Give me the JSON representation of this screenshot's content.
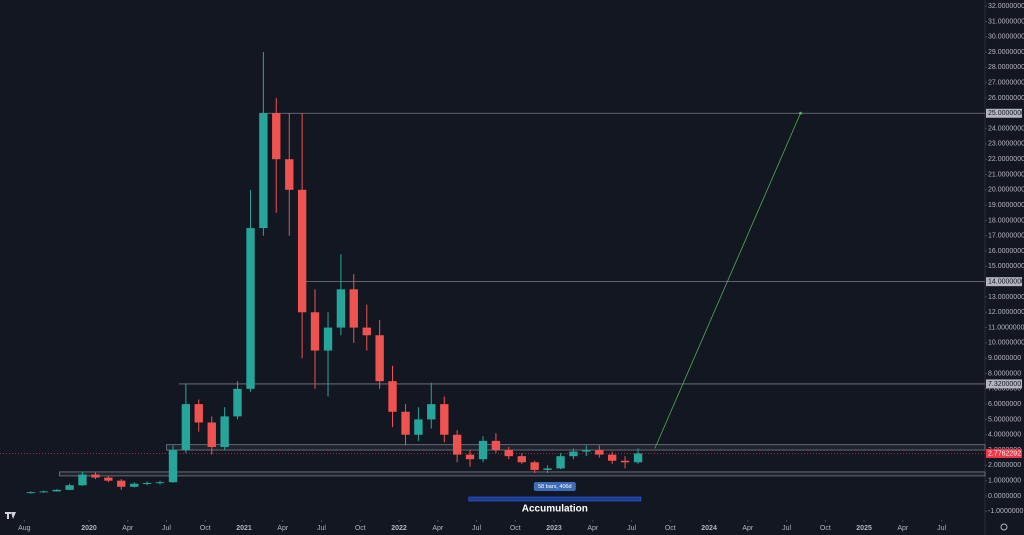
{
  "chart_data": {
    "type": "candlestick",
    "up_color": "#26a69a",
    "down_color": "#ef5350",
    "x": [
      2019.625,
      2019.708,
      2019.792,
      2019.875,
      2019.958,
      2020.042,
      2020.125,
      2020.208,
      2020.292,
      2020.375,
      2020.458,
      2020.542,
      2020.625,
      2020.708,
      2020.792,
      2020.875,
      2020.958,
      2021.042,
      2021.125,
      2021.208,
      2021.292,
      2021.375,
      2021.458,
      2021.542,
      2021.625,
      2021.708,
      2021.792,
      2021.875,
      2021.958,
      2022.042,
      2022.125,
      2022.208,
      2022.292,
      2022.375,
      2022.458,
      2022.542,
      2022.625,
      2022.708,
      2022.792,
      2022.875,
      2022.958,
      2023.042,
      2023.125,
      2023.208,
      2023.292,
      2023.375,
      2023.458,
      2023.542
    ],
    "open": [
      0.2,
      0.25,
      0.3,
      0.4,
      0.7,
      1.4,
      1.2,
      1.0,
      0.6,
      0.8,
      0.85,
      0.9,
      3.0,
      6.0,
      4.8,
      3.2,
      5.2,
      7.0,
      17.5,
      25.0,
      22.0,
      20.0,
      12.0,
      9.5,
      11.0,
      13.5,
      11.0,
      10.5,
      7.5,
      5.5,
      4.0,
      5.0,
      6.0,
      4.0,
      2.7,
      2.4,
      3.6,
      3.0,
      2.6,
      2.2,
      1.7,
      1.8,
      2.6,
      2.9,
      3.0,
      2.7,
      2.3,
      2.2
    ],
    "high": [
      0.3,
      0.35,
      0.45,
      0.8,
      1.6,
      1.55,
      1.3,
      1.1,
      0.9,
      0.95,
      1.0,
      3.3,
      7.3,
      6.3,
      5.2,
      5.8,
      7.5,
      20.0,
      29.0,
      26.0,
      25.0,
      25.0,
      13.5,
      12.0,
      15.8,
      14.5,
      12.5,
      11.5,
      8.5,
      6.0,
      5.8,
      7.4,
      6.5,
      4.3,
      3.0,
      3.9,
      4.1,
      3.2,
      2.8,
      2.3,
      2.0,
      2.8,
      3.1,
      3.3,
      3.3,
      2.9,
      2.6,
      3.1
    ],
    "low": [
      0.15,
      0.2,
      0.28,
      0.38,
      0.65,
      1.1,
      0.9,
      0.4,
      0.55,
      0.7,
      0.75,
      0.85,
      2.8,
      4.2,
      2.7,
      3.0,
      5.0,
      6.8,
      17.0,
      18.5,
      17.0,
      9.0,
      7.0,
      6.5,
      10.5,
      10.0,
      9.5,
      7.0,
      4.5,
      3.3,
      3.6,
      4.4,
      3.5,
      2.2,
      1.9,
      2.2,
      2.8,
      2.4,
      2.1,
      1.5,
      1.5,
      1.75,
      2.4,
      2.6,
      2.5,
      2.1,
      1.8,
      2.1
    ],
    "close": [
      0.25,
      0.3,
      0.4,
      0.7,
      1.4,
      1.2,
      1.0,
      0.6,
      0.8,
      0.85,
      0.9,
      3.0,
      6.0,
      4.8,
      3.2,
      5.2,
      7.0,
      17.5,
      25.0,
      22.0,
      20.0,
      12.0,
      9.5,
      11.0,
      13.5,
      11.0,
      10.5,
      7.5,
      5.5,
      4.0,
      5.0,
      6.0,
      4.0,
      2.7,
      2.4,
      3.6,
      3.0,
      2.6,
      2.2,
      1.7,
      1.8,
      2.6,
      2.9,
      3.0,
      2.7,
      2.3,
      2.2,
      2.7762292
    ],
    "xlim": [
      2019.426,
      2025.78
    ],
    "ylim": [
      -1.57,
      32.4
    ],
    "xticks": [
      {
        "value": 2019.583,
        "label": "Aug"
      },
      2020,
      {
        "value": 2020.25,
        "label": "Apr"
      },
      {
        "value": 2020.5,
        "label": "Jul"
      },
      {
        "value": 2020.75,
        "label": "Oct"
      },
      2021,
      {
        "value": 2021.25,
        "label": "Apr"
      },
      {
        "value": 2021.5,
        "label": "Jul"
      },
      {
        "value": 2021.75,
        "label": "Oct"
      },
      2022,
      {
        "value": 2022.25,
        "label": "Apr"
      },
      {
        "value": 2022.5,
        "label": "Jul"
      },
      {
        "value": 2022.75,
        "label": "Oct"
      },
      2023,
      {
        "value": 2023.25,
        "label": "Apr"
      },
      {
        "value": 2023.5,
        "label": "Jul"
      },
      {
        "value": 2023.75,
        "label": "Oct"
      },
      2024,
      {
        "value": 2024.25,
        "label": "Apr"
      },
      {
        "value": 2024.5,
        "label": "Jul"
      },
      {
        "value": 2024.75,
        "label": "Oct"
      },
      2025,
      {
        "value": 2025.25,
        "label": "Apr"
      },
      {
        "value": 2025.5,
        "label": "Jul"
      }
    ],
    "yticks": [
      {
        "value": -1,
        "label": "-1.0000000"
      },
      {
        "value": 0,
        "label": "0.0000000"
      },
      {
        "value": 1,
        "label": "1.0000000"
      },
      {
        "value": 2,
        "label": "2.0000000"
      },
      {
        "value": 3,
        "label": "3.0000000"
      },
      {
        "value": 4,
        "label": "4.0000000"
      },
      {
        "value": 5,
        "label": "5.0000000"
      },
      {
        "value": 6,
        "label": "6.0000000"
      },
      {
        "value": 7,
        "label": "7.0000000"
      },
      {
        "value": 8,
        "label": "8.0000000"
      },
      {
        "value": 9,
        "label": "9.0000000"
      },
      {
        "value": 10,
        "label": "10.0000000"
      },
      {
        "value": 11,
        "label": "11.0000000"
      },
      {
        "value": 12,
        "label": "12.0000000"
      },
      {
        "value": 13,
        "label": "13.0000000"
      },
      {
        "value": 15,
        "label": "15.0000000"
      },
      {
        "value": 16,
        "label": "16.0000000"
      },
      {
        "value": 17,
        "label": "17.0000000"
      },
      {
        "value": 18,
        "label": "18.0000000"
      },
      {
        "value": 19,
        "label": "19.0000000"
      },
      {
        "value": 20,
        "label": "20.0000000"
      },
      {
        "value": 21,
        "label": "21.0000000"
      },
      {
        "value": 22,
        "label": "22.0000000"
      },
      {
        "value": 23,
        "label": "23.0000000"
      },
      {
        "value": 24,
        "label": "24.0000000"
      },
      {
        "value": 26,
        "label": "26.0000000"
      },
      {
        "value": 27,
        "label": "27.0000000"
      },
      {
        "value": 28,
        "label": "28.0000000"
      },
      {
        "value": 29,
        "label": "29.0000000"
      },
      {
        "value": 30,
        "label": "30.0000000"
      },
      {
        "value": 31,
        "label": "31.0000000"
      },
      {
        "value": 32,
        "label": "32.0000000"
      }
    ],
    "levels": [
      {
        "value": 25,
        "label": "25.0000000",
        "start": 2021.1
      },
      {
        "value": 14,
        "label": "14.0000000",
        "start": 2021.4
      },
      {
        "value": 7.32,
        "label": "7.3200000",
        "start": 2020.58
      }
    ],
    "zones": [
      {
        "low": 3.0,
        "high": 3.35,
        "start": 2020.5
      },
      {
        "low": 1.31,
        "high": 1.57,
        "start": 2019.81
      }
    ],
    "last_price": 2.7762292,
    "last_price_color": "#f23645",
    "projection": {
      "x": [
        2023.65,
        2024.59
      ],
      "y": [
        3.1,
        25
      ],
      "color": "#4caf50"
    },
    "measure": {
      "label": "58 bars, 406d",
      "title": "Accumulation",
      "start": 2022.45,
      "end": 2023.56
    }
  }
}
